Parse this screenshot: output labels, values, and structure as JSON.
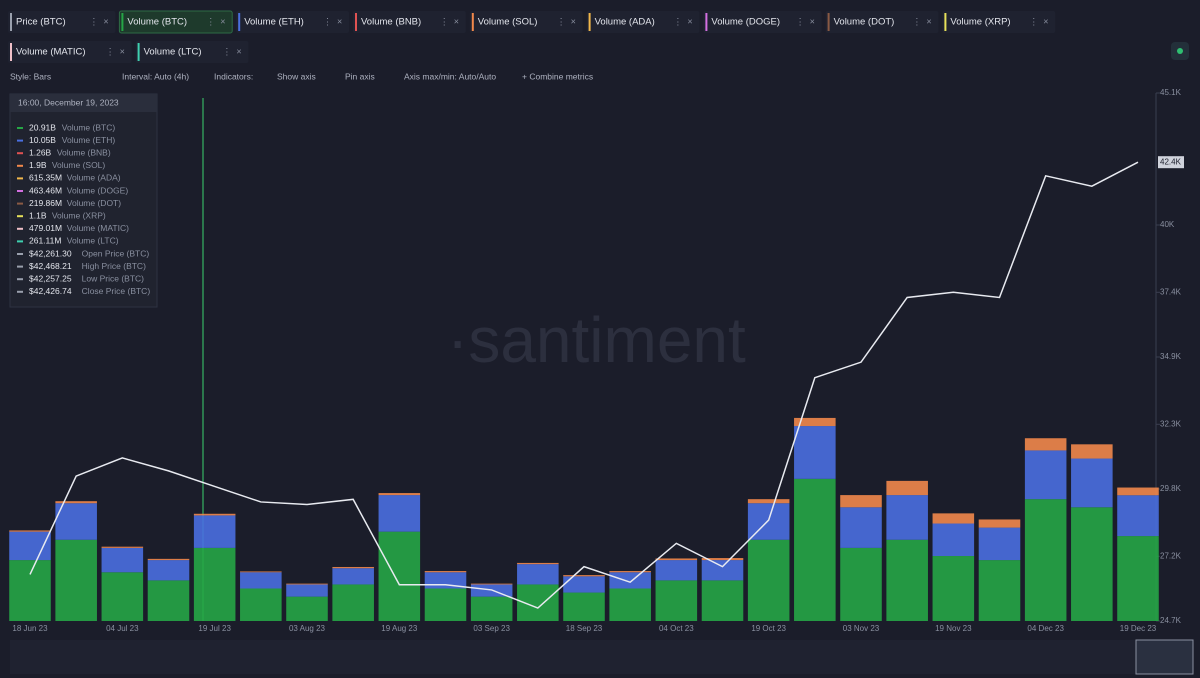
{
  "tabs": [
    {
      "label": "Price (BTC)",
      "color": "#9aa0ad"
    },
    {
      "label": "Volume (BTC)",
      "color": "#26a646"
    },
    {
      "label": "Volume (ETH)",
      "color": "#4a6fe0"
    },
    {
      "label": "Volume (BNB)",
      "color": "#e05252"
    },
    {
      "label": "Volume (SOL)",
      "color": "#f2884b"
    },
    {
      "label": "Volume (ADA)",
      "color": "#f2b84b"
    },
    {
      "label": "Volume (DOGE)",
      "color": "#d36fe0"
    },
    {
      "label": "Volume (DOT)",
      "color": "#8a5a44"
    },
    {
      "label": "Volume (XRP)",
      "color": "#e6e05a"
    },
    {
      "label": "Volume (MATIC)",
      "color": "#f0c0c8"
    },
    {
      "label": "Volume (LTC)",
      "color": "#3fd0b0"
    }
  ],
  "toolbar": [
    "Style: Bars",
    "Interval: Auto (4h)",
    "Indicators:",
    "Show axis",
    "Pin axis",
    "Axis max/min: Auto/Auto",
    "+ Combine metrics"
  ],
  "watermark": "·santiment",
  "tooltip": {
    "date": "16:00, December 19, 2023",
    "rows": [
      {
        "value": "20.91B",
        "name": "Volume (BTC)",
        "color": "#26a646"
      },
      {
        "value": "10.05B",
        "name": "Volume (ETH)",
        "color": "#4a6fe0"
      },
      {
        "value": "1.26B",
        "name": "Volume (BNB)",
        "color": "#e05252"
      },
      {
        "value": "1.9B",
        "name": "Volume (SOL)",
        "color": "#f2884b"
      },
      {
        "value": "615.35M",
        "name": "Volume (ADA)",
        "color": "#f2b84b"
      },
      {
        "value": "463.46M",
        "name": "Volume (DOGE)",
        "color": "#d36fe0"
      },
      {
        "value": "219.86M",
        "name": "Volume (DOT)",
        "color": "#8a5a44"
      },
      {
        "value": "1.1B",
        "name": "Volume (XRP)",
        "color": "#e6e05a"
      },
      {
        "value": "479.01M",
        "name": "Volume (MATIC)",
        "color": "#f0c0c8"
      },
      {
        "value": "261.11M",
        "name": "Volume (LTC)",
        "color": "#3fd0b0"
      },
      {
        "value": "$42,261.30",
        "name": "Open Price (BTC)",
        "color": "#9aa0ad"
      },
      {
        "value": "$42,468.21",
        "name": "High Price (BTC)",
        "color": "#9aa0ad"
      },
      {
        "value": "$42,257.25",
        "name": "Low Price (BTC)",
        "color": "#9aa0ad"
      },
      {
        "value": "$42,426.74",
        "name": "Close Price (BTC)",
        "color": "#9aa0ad"
      }
    ]
  },
  "chart_data": {
    "type": "bar",
    "categories": [
      "18 Jun 23",
      null,
      "04 Jul 23",
      null,
      "19 Jul 23",
      null,
      "03 Aug 23",
      null,
      "19 Aug 23",
      null,
      "03 Sep 23",
      null,
      "18 Sep 23",
      null,
      "04 Oct 23",
      null,
      "19 Oct 23",
      null,
      "03 Nov 23",
      null,
      "19 Nov 23",
      null,
      "04 Dec 23",
      null,
      "19 Dec 23"
    ],
    "series": [
      {
        "name": "Volume (BTC)",
        "color": "#26a646",
        "values": [
          15,
          20,
          12,
          10,
          18,
          8,
          6,
          9,
          22,
          8,
          6,
          9,
          7,
          8,
          10,
          10,
          20,
          35,
          18,
          20,
          16,
          15,
          30,
          28,
          20.91
        ]
      },
      {
        "name": "Volume (ETH)",
        "color": "#4a6fe0",
        "values": [
          7,
          9,
          6,
          5,
          8,
          4,
          3,
          4,
          9,
          4,
          3,
          5,
          4,
          4,
          5,
          5,
          9,
          13,
          10,
          11,
          8,
          8,
          12,
          12,
          10.05
        ]
      },
      {
        "name": "Volume (SOL)",
        "color": "#f2884b",
        "values": [
          0.3,
          0.5,
          0.3,
          0.3,
          0.4,
          0.2,
          0.2,
          0.3,
          0.5,
          0.3,
          0.2,
          0.3,
          0.3,
          0.3,
          0.4,
          0.5,
          1,
          2,
          3,
          3.5,
          2.5,
          2,
          3,
          3.5,
          1.9
        ]
      },
      {
        "name": "Price (BTC)",
        "color": "#e8eaf0",
        "axis": "y2",
        "values": [
          26500,
          30300,
          31000,
          30500,
          29900,
          29300,
          29200,
          29400,
          26100,
          26100,
          25900,
          25200,
          26800,
          26200,
          27700,
          26800,
          28600,
          34100,
          34700,
          37200,
          37400,
          37200,
          41900,
          41500,
          42426.74
        ]
      }
    ],
    "ylim": [
      0,
      130
    ],
    "y2lim": [
      24700,
      45100
    ],
    "y2ticks": [
      {
        "value": 24700,
        "label": "24.7K"
      },
      {
        "value": 27200,
        "label": "27.2K"
      },
      {
        "value": 29800,
        "label": "29.8K"
      },
      {
        "value": 32300,
        "label": "32.3K"
      },
      {
        "value": 34900,
        "label": "34.9K"
      },
      {
        "value": 37400,
        "label": "37.4K"
      },
      {
        "value": 40000,
        "label": "40K"
      },
      {
        "value": 45100,
        "label": "45.1K"
      }
    ],
    "last_price": {
      "value": 42426.74,
      "label": "42.4K"
    }
  }
}
